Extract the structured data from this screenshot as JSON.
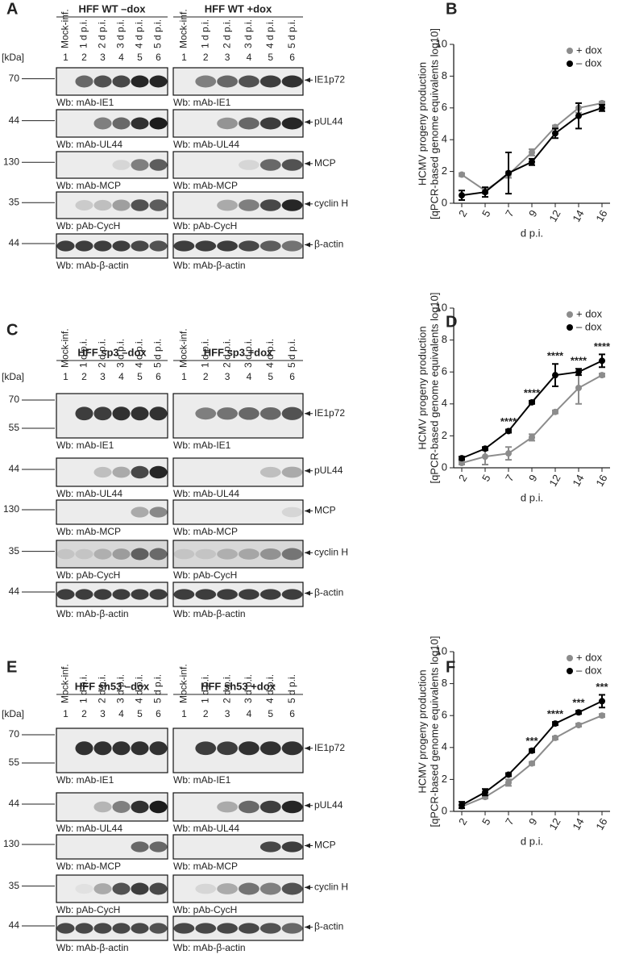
{
  "panel_letters": [
    "A",
    "B",
    "C",
    "D",
    "E",
    "F"
  ],
  "blots": [
    {
      "kda_label": "[kDa]",
      "groups": [
        {
          "title": "HFF WT –dox",
          "lanes": [
            "Mock-inf.",
            "1 d p.i.",
            "2 d p.i.",
            "3 d p.i.",
            "4 d p.i.",
            "5 d p.i."
          ],
          "numbers": [
            1,
            2,
            3,
            4,
            5,
            6
          ]
        },
        {
          "title": "HFF WT +dox",
          "lanes": [
            "Mock-inf.",
            "1 d p.i.",
            "2 d p.i.",
            "3 d p.i.",
            "4 d p.i.",
            "5 d p.i."
          ],
          "numbers": [
            1,
            2,
            3,
            4,
            5,
            6
          ]
        }
      ],
      "rows": [
        {
          "markers": [
            70
          ],
          "antibody": "Wb: mAb-IE1",
          "target": "IE1p72"
        },
        {
          "markers": [
            44
          ],
          "antibody": "Wb: mAb-UL44",
          "target": "pUL44"
        },
        {
          "markers": [
            130
          ],
          "antibody": "Wb: mAb-MCP",
          "target": "MCP"
        },
        {
          "markers": [
            35
          ],
          "antibody": "Wb: pAb-CycH",
          "target": "cyclin H"
        },
        {
          "markers": [
            44
          ],
          "antibody": "Wb: mAb-β-actin",
          "target": "β-actin"
        }
      ]
    },
    {
      "kda_label": "[kDa]",
      "groups": [
        {
          "title": "HFF sp3 –dox",
          "lanes": [
            "Mock-inf.",
            "1 d p.i.",
            "2 d p.i.",
            "3 d p.i.",
            "4 d p.i.",
            "5 d p.i."
          ],
          "numbers": [
            1,
            2,
            3,
            4,
            5,
            6
          ]
        },
        {
          "title": "HFF sp3 +dox",
          "lanes": [
            "Mock-inf.",
            "1 d p.i.",
            "2 d p.i.",
            "3 d p.i.",
            "4 d p.i.",
            "5 d p.i."
          ],
          "numbers": [
            1,
            2,
            3,
            4,
            5,
            6
          ]
        }
      ],
      "rows": [
        {
          "markers": [
            70,
            55
          ],
          "antibody": "Wb: mAb-IE1",
          "target": "IE1p72"
        },
        {
          "markers": [
            44
          ],
          "antibody": "Wb: mAb-UL44",
          "target": "pUL44"
        },
        {
          "markers": [
            130
          ],
          "antibody": "Wb: mAb-MCP",
          "target": "MCP"
        },
        {
          "markers": [
            35
          ],
          "antibody": "Wb: pAb-CycH",
          "target": "cyclin H"
        },
        {
          "markers": [
            44
          ],
          "antibody": "Wb: mAb-β-actin",
          "target": "β-actin"
        }
      ]
    },
    {
      "kda_label": "[kDa]",
      "groups": [
        {
          "title": "HFF sh53 –dox",
          "lanes": [
            "Mock-inf.",
            "1 d p.i.",
            "2 d p.i.",
            "3 d p.i.",
            "4 d p.i.",
            "5 d p.i."
          ],
          "numbers": [
            1,
            2,
            3,
            4,
            5,
            6
          ]
        },
        {
          "title": "HFF sh53 +dox",
          "lanes": [
            "Mock-inf.",
            "1 d p.i.",
            "2 d p.i.",
            "3 d p.i.",
            "4 d p.i.",
            "5 d p.i."
          ],
          "numbers": [
            1,
            2,
            3,
            4,
            5,
            6
          ]
        }
      ],
      "rows": [
        {
          "markers": [
            70,
            55
          ],
          "antibody": "Wb: mAb-IE1",
          "target": "IE1p72"
        },
        {
          "markers": [
            44
          ],
          "antibody": "Wb: mAb-UL44",
          "target": "pUL44"
        },
        {
          "markers": [
            130
          ],
          "antibody": "Wb: mAb-MCP",
          "target": "MCP"
        },
        {
          "markers": [
            35
          ],
          "antibody": "Wb: pAb-CycH",
          "target": "cyclin H"
        },
        {
          "markers": [
            44
          ],
          "antibody": "Wb: mAb-β-actin",
          "target": "β-actin"
        }
      ]
    }
  ],
  "chart_data": [
    {
      "type": "line",
      "ylabel": [
        "HCMV progeny production",
        "[qPCR-based genome equivalents log10]"
      ],
      "xlabel": "d p.i.",
      "categories": [
        2,
        5,
        7,
        9,
        12,
        14,
        16
      ],
      "ylim": [
        0,
        10
      ],
      "yticks": [
        0,
        2,
        4,
        6,
        8,
        10
      ],
      "legend": "upper right",
      "series": [
        {
          "name": "+ dox",
          "color": "#8c8c8c",
          "values": [
            1.8,
            0.8,
            1.8,
            3.2,
            4.8,
            6.0,
            6.3
          ],
          "errors": [
            0.1,
            0.2,
            0.2,
            0.2,
            0.1,
            0.3,
            0.1
          ]
        },
        {
          "name": "– dox",
          "color": "#000000",
          "values": [
            0.5,
            0.7,
            1.9,
            2.6,
            4.4,
            5.5,
            6.0
          ],
          "errors": [
            0.3,
            0.3,
            1.3,
            0.2,
            0.3,
            0.8,
            0.2
          ]
        }
      ]
    },
    {
      "type": "line",
      "ylabel": [
        "HCMV progeny production",
        "[qPCR-based genome equivalents log10]"
      ],
      "xlabel": "d p.i.",
      "categories": [
        2,
        5,
        7,
        9,
        12,
        14,
        16
      ],
      "ylim": [
        0,
        10
      ],
      "yticks": [
        0,
        2,
        4,
        6,
        8,
        10
      ],
      "legend": "upper right",
      "series": [
        {
          "name": "+ dox",
          "color": "#8c8c8c",
          "values": [
            0.3,
            0.7,
            0.9,
            1.9,
            3.5,
            5.0,
            5.8
          ],
          "errors": [
            0.1,
            0.5,
            0.4,
            0.2,
            0.1,
            1.0,
            0.1
          ]
        },
        {
          "name": "– dox",
          "color": "#000000",
          "values": [
            0.6,
            1.2,
            2.3,
            4.1,
            5.8,
            6.0,
            6.7
          ],
          "errors": [
            0.1,
            0.1,
            0.1,
            0.1,
            0.7,
            0.2,
            0.4
          ]
        }
      ],
      "annotations": [
        null,
        null,
        "****",
        "****",
        "****",
        "****",
        "****"
      ]
    },
    {
      "type": "line",
      "ylabel": [
        "HCMV progeny production",
        "[qPCR-based genome equivalents log10]"
      ],
      "xlabel": "d p.i.",
      "categories": [
        2,
        5,
        7,
        9,
        12,
        14,
        16
      ],
      "ylim": [
        0,
        10
      ],
      "yticks": [
        0,
        2,
        4,
        6,
        8,
        10
      ],
      "legend": "upper right",
      "series": [
        {
          "name": "+ dox",
          "color": "#8c8c8c",
          "values": [
            0.3,
            0.9,
            1.8,
            3.0,
            4.6,
            5.4,
            6.0
          ],
          "errors": [
            0.1,
            0.1,
            0.2,
            0.1,
            0.1,
            0.1,
            0.1
          ]
        },
        {
          "name": "– dox",
          "color": "#000000",
          "values": [
            0.4,
            1.2,
            2.3,
            3.8,
            5.5,
            6.2,
            6.9
          ],
          "errors": [
            0.2,
            0.2,
            0.1,
            0.1,
            0.1,
            0.1,
            0.4
          ]
        }
      ],
      "annotations": [
        null,
        null,
        null,
        "***",
        "****",
        "***",
        "***"
      ]
    }
  ]
}
